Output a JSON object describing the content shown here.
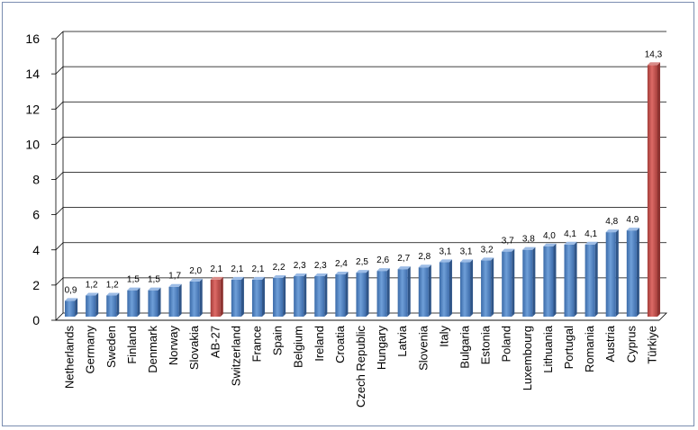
{
  "chart_data": {
    "type": "bar",
    "title": "",
    "xlabel": "",
    "ylabel": "",
    "ylim": [
      0,
      16
    ],
    "yticks": [
      0,
      2,
      4,
      6,
      8,
      10,
      12,
      14,
      16
    ],
    "grid": true,
    "categories": [
      "Netherlands",
      "Germany",
      "Sweden",
      "Finland",
      "Denmark",
      "Norway",
      "Slovakia",
      "AB-27",
      "Switzerland",
      "France",
      "Spain",
      "Belgium",
      "Ireland",
      "Croatia",
      "Czech Republic",
      "Hungary",
      "Latvia",
      "Slovenia",
      "Italy",
      "Bulgaria",
      "Estonia",
      "Poland",
      "Luxembourg",
      "Lithuania",
      "Portugal",
      "Romania",
      "Austria",
      "Cyprus",
      "Türkiye"
    ],
    "values": [
      0.9,
      1.2,
      1.2,
      1.5,
      1.5,
      1.7,
      2.0,
      2.1,
      2.1,
      2.1,
      2.2,
      2.3,
      2.3,
      2.4,
      2.5,
      2.6,
      2.7,
      2.8,
      3.1,
      3.1,
      3.2,
      3.7,
      3.8,
      4.0,
      4.1,
      4.1,
      4.8,
      4.9,
      14.3
    ],
    "value_labels": [
      "0,9",
      "1,2",
      "1,2",
      "1,5",
      "1,5",
      "1,7",
      "2,0",
      "2,1",
      "2,1",
      "2,1",
      "2,2",
      "2,3",
      "2,3",
      "2,4",
      "2,5",
      "2,6",
      "2,7",
      "2,8",
      "3,1",
      "3,1",
      "3,2",
      "3,7",
      "3,8",
      "4,0",
      "4,1",
      "4,1",
      "4,8",
      "4,9",
      "14,3"
    ],
    "highlighted": [
      "AB-27",
      "Türkiye"
    ],
    "colors": {
      "bar": "#4f81bd",
      "highlight": "#c0504d",
      "grid": "#000000"
    }
  }
}
